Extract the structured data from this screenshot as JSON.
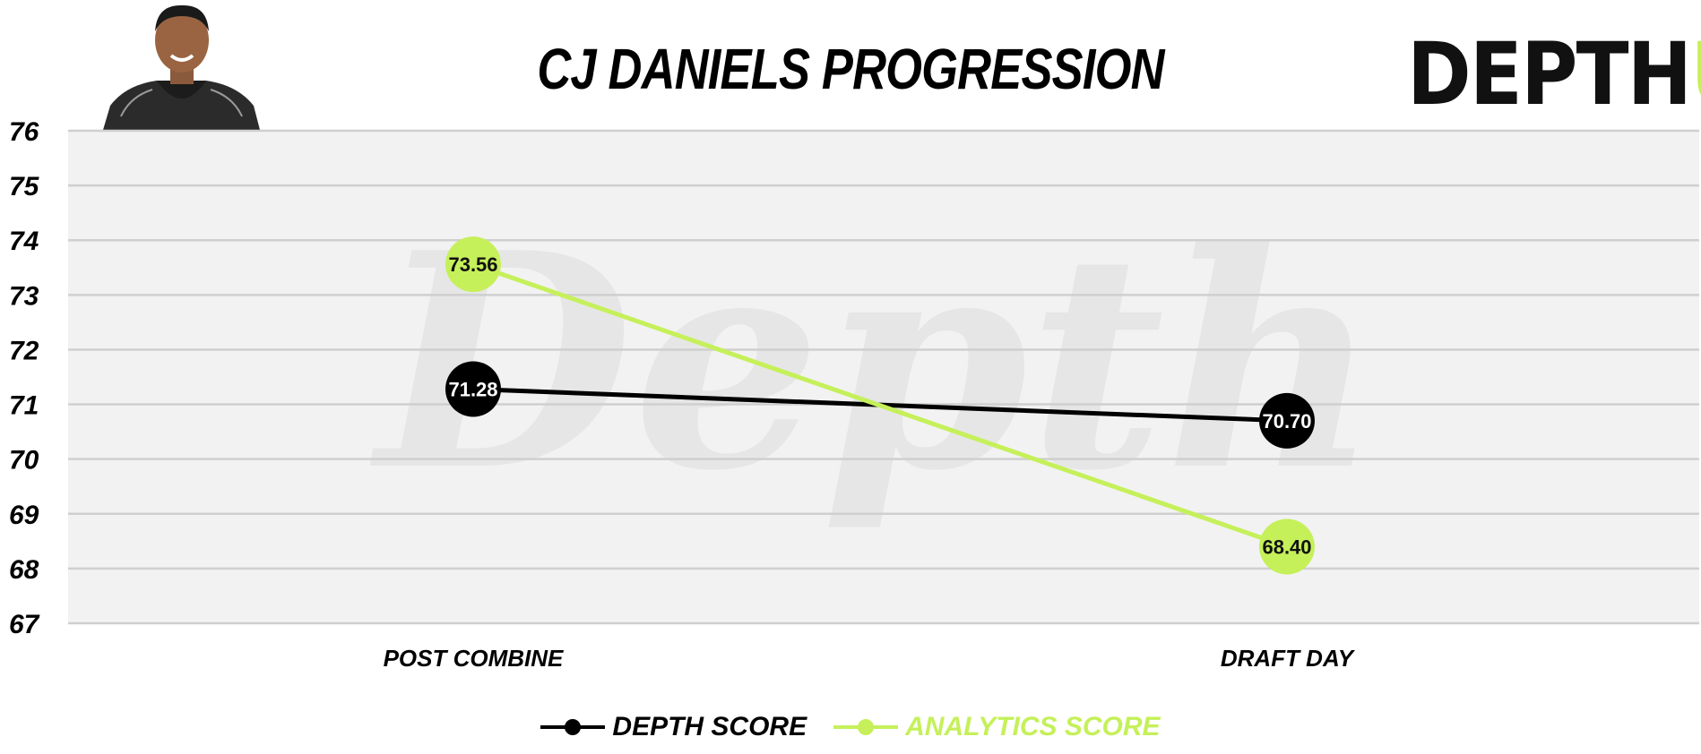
{
  "page": {
    "title": "CJ DANIELS PROGRESSION"
  },
  "logo": {
    "text_main": "DEPTH",
    "text_accent": "U"
  },
  "watermark": {
    "text": "Depth"
  },
  "colors": {
    "depth": "#000000",
    "analytics": "#c5f05a",
    "grid": "#cfcfcf",
    "plot_bg": "#f2f2f2"
  },
  "chart_data": {
    "type": "line",
    "title": "CJ DANIELS PROGRESSION",
    "categories": [
      "POST COMBINE",
      "DRAFT DAY"
    ],
    "series": [
      {
        "name": "DEPTH SCORE",
        "values": [
          71.28,
          70.7
        ],
        "labels": [
          "71.28",
          "70.70"
        ],
        "color": "#000000"
      },
      {
        "name": "ANALYTICS SCORE",
        "values": [
          73.56,
          68.4
        ],
        "labels": [
          "73.56",
          "68.40"
        ],
        "color": "#c5f05a"
      }
    ],
    "ylim": [
      67,
      76
    ],
    "yticks": [
      "67",
      "68",
      "69",
      "70",
      "71",
      "72",
      "73",
      "74",
      "75",
      "76"
    ],
    "grid": true,
    "legend": "bottom-center"
  }
}
